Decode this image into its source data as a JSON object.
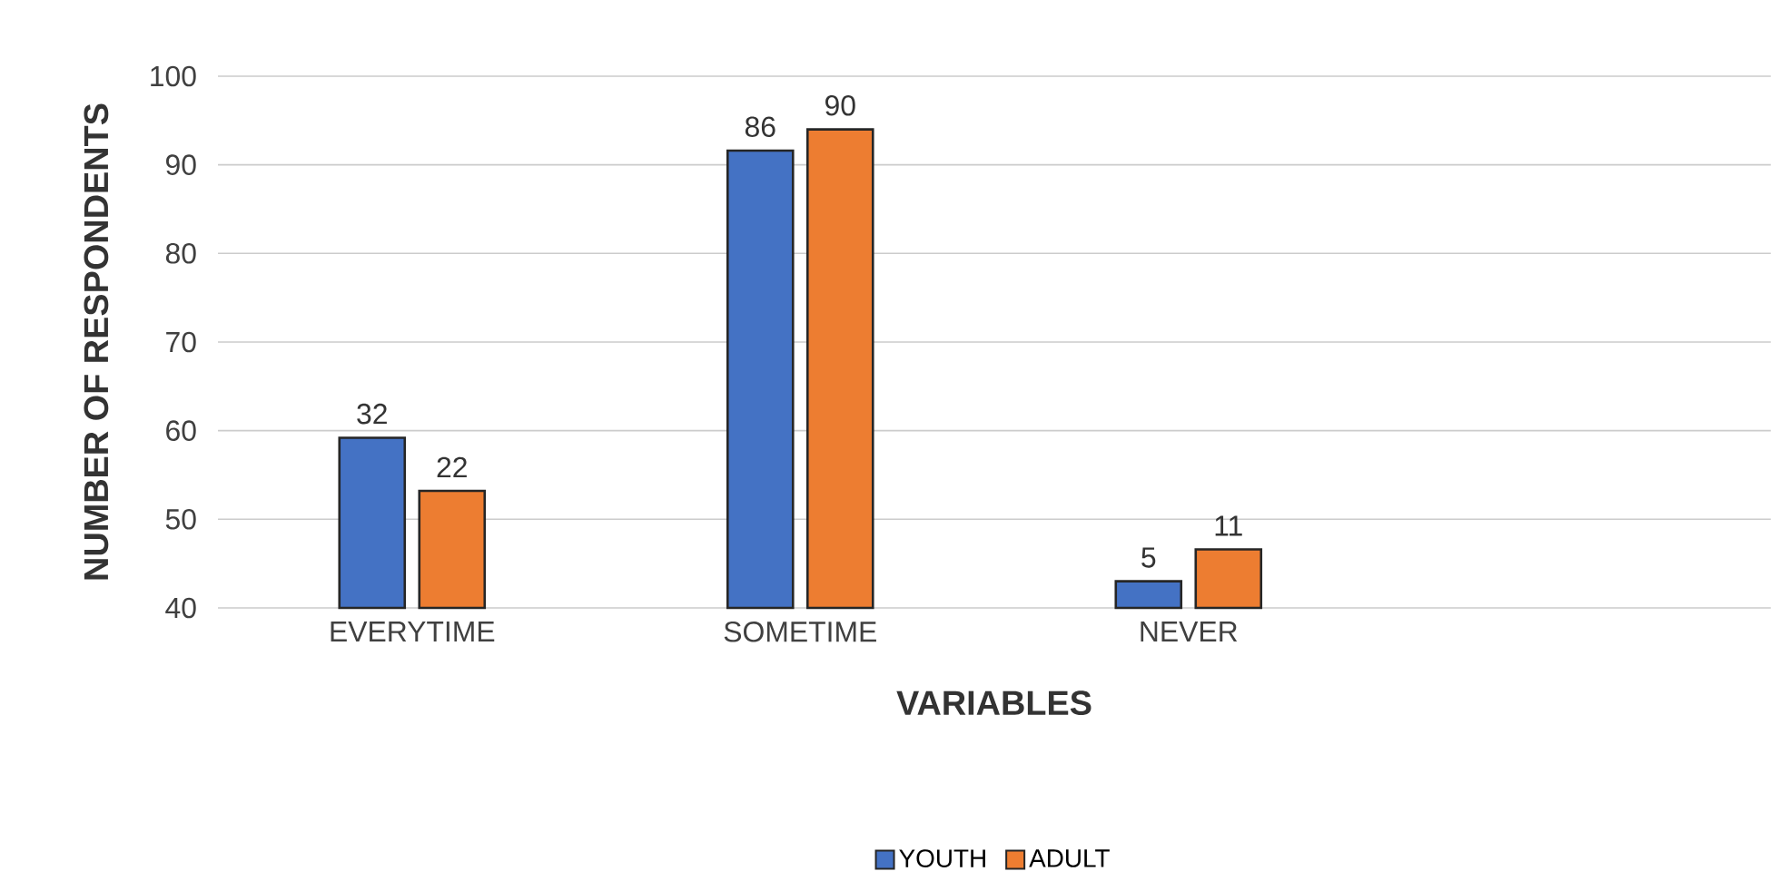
{
  "chart_data": {
    "type": "bar",
    "xlabel": "VARIABLES",
    "ylabel": "NUMBER OF RESPONDENTS",
    "categories": [
      "EVERYTIME",
      "SOMETIME",
      "NEVER"
    ],
    "series": [
      {
        "name": "YOUTH",
        "color": "#4472c4",
        "values": [
          32,
          86,
          5
        ]
      },
      {
        "name": "ADULT",
        "color": "#ed7d31",
        "values": [
          22,
          90,
          11
        ]
      }
    ],
    "ylim": [
      0,
      100
    ],
    "annotations": [
      "40",
      "50",
      "60",
      "70",
      "80",
      "90",
      "100"
    ],
    "grid": "y",
    "legend": "bottom",
    "data_labels": true
  }
}
